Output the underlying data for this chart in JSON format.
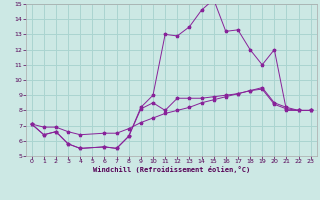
{
  "title": "",
  "xlabel": "Windchill (Refroidissement éolien,°C)",
  "background_color": "#cce8e4",
  "grid_color": "#aad4d0",
  "line_color": "#882299",
  "xlim": [
    -0.5,
    23.5
  ],
  "ylim": [
    5,
    15
  ],
  "yticks": [
    5,
    6,
    7,
    8,
    9,
    10,
    11,
    12,
    13,
    14,
    15
  ],
  "xticks": [
    0,
    1,
    2,
    3,
    4,
    5,
    6,
    7,
    8,
    9,
    10,
    11,
    12,
    13,
    14,
    15,
    16,
    17,
    18,
    19,
    20,
    21,
    22,
    23
  ],
  "line1_x": [
    0,
    1,
    2,
    3,
    4,
    6,
    7,
    8,
    9,
    10,
    11,
    12,
    13,
    14,
    15,
    16,
    17,
    18,
    19,
    20,
    21,
    22,
    23
  ],
  "line1_y": [
    7.1,
    6.4,
    6.6,
    5.8,
    5.5,
    5.6,
    5.5,
    6.3,
    8.1,
    8.5,
    8.0,
    8.8,
    8.8,
    8.8,
    8.9,
    9.0,
    9.1,
    9.3,
    9.5,
    8.5,
    8.2,
    8.0,
    8.0
  ],
  "line2_x": [
    0,
    1,
    2,
    3,
    4,
    6,
    7,
    8,
    9,
    10,
    11,
    12,
    13,
    14,
    15,
    16,
    17,
    18,
    19,
    20,
    21,
    22,
    23
  ],
  "line2_y": [
    7.1,
    6.4,
    6.6,
    5.8,
    5.5,
    5.6,
    5.5,
    6.3,
    8.2,
    9.0,
    13.0,
    12.9,
    13.5,
    14.6,
    15.3,
    13.2,
    13.3,
    12.0,
    11.0,
    12.0,
    8.0,
    8.0,
    8.0
  ],
  "line3_x": [
    0,
    1,
    2,
    3,
    4,
    6,
    7,
    8,
    9,
    10,
    11,
    12,
    13,
    14,
    15,
    16,
    17,
    18,
    19,
    20,
    21,
    22,
    23
  ],
  "line3_y": [
    7.1,
    6.9,
    6.9,
    6.6,
    6.4,
    6.5,
    6.5,
    6.8,
    7.2,
    7.5,
    7.8,
    8.0,
    8.2,
    8.5,
    8.7,
    8.9,
    9.1,
    9.3,
    9.4,
    8.4,
    8.1,
    8.0,
    8.0
  ]
}
